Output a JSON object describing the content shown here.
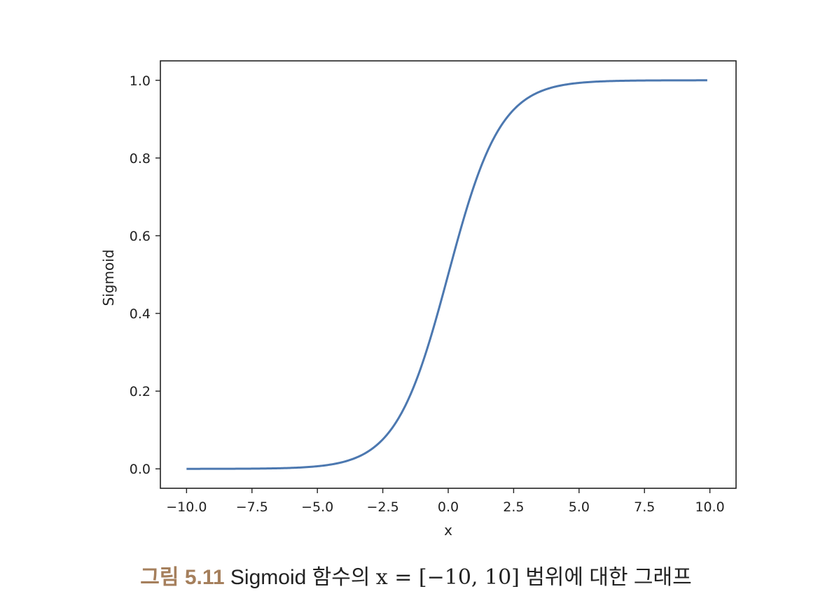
{
  "chart_data": {
    "type": "line",
    "xlabel": "x",
    "ylabel": "Sigmoid",
    "xlim": [
      -11.0,
      11.0
    ],
    "ylim": [
      -0.05,
      1.05
    ],
    "xticks": [
      -10.0,
      -7.5,
      -5.0,
      -2.5,
      0.0,
      2.5,
      5.0,
      7.5,
      10.0
    ],
    "xtick_labels": [
      "−10.0",
      "−7.5",
      "−5.0",
      "−2.5",
      "0.0",
      "2.5",
      "5.0",
      "7.5",
      "10.0"
    ],
    "yticks": [
      0.0,
      0.2,
      0.4,
      0.6,
      0.8,
      1.0
    ],
    "ytick_labels": [
      "0.0",
      "0.2",
      "0.4",
      "0.6",
      "0.8",
      "1.0"
    ],
    "grid": false,
    "series": [
      {
        "color": "#4c78b0",
        "x": [
          -10,
          -9,
          -8,
          -7,
          -6,
          -5,
          -4,
          -3.5,
          -3,
          -2.5,
          -2,
          -1.5,
          -1,
          -0.5,
          0,
          0.5,
          1,
          1.5,
          2,
          2.5,
          3,
          3.5,
          4,
          5,
          6,
          7,
          8,
          9,
          9.9
        ],
        "y": [
          0.0,
          0.0001,
          0.0003,
          0.0009,
          0.0025,
          0.0067,
          0.018,
          0.029,
          0.047,
          0.076,
          0.119,
          0.182,
          0.269,
          0.378,
          0.5,
          0.622,
          0.731,
          0.818,
          0.881,
          0.924,
          0.953,
          0.971,
          0.982,
          0.9933,
          0.9975,
          0.9991,
          0.9997,
          0.9999,
          1.0
        ]
      }
    ]
  },
  "caption": {
    "label": "그림 5.11",
    "text_before": " Sigmoid 함수의 ",
    "math": "x = [−10, 10]",
    "text_after": " 범위에 대한 그래프"
  }
}
